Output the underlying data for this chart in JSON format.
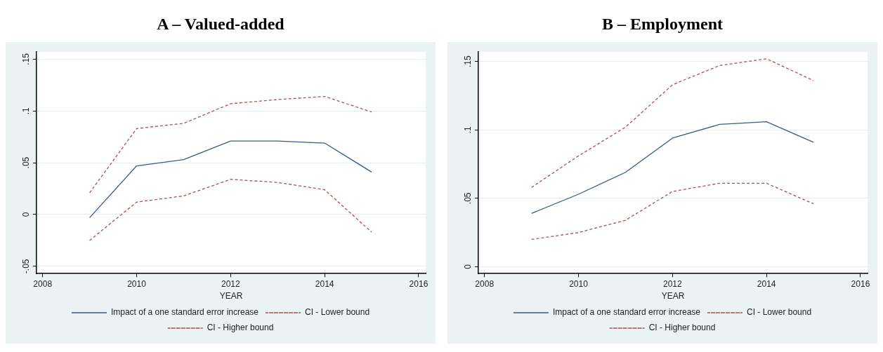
{
  "chart_data": [
    {
      "type": "line",
      "title": "A – Valued-added",
      "xlabel": "YEAR",
      "x": [
        2009,
        2010,
        2011,
        2012,
        2013,
        2014,
        2015
      ],
      "xlim": [
        2007.87,
        2016.15
      ],
      "xticks": [
        2008,
        2010,
        2012,
        2014,
        2016
      ],
      "ylim": [
        -0.057,
        0.157
      ],
      "yticks": [
        {
          "value": -0.05,
          "label": "-.05"
        },
        0,
        {
          "value": 0.05,
          "label": ".05"
        },
        {
          "value": 0.1,
          "label": ".1"
        },
        {
          "value": 0.15,
          "label": ".15"
        }
      ],
      "grid": "y",
      "legend": "bottom",
      "marker": "none",
      "series": [
        {
          "name": "Impact of a one standard error increase",
          "color": "#3b5b7d",
          "line_style": "solid",
          "values": [
            -0.003,
            0.047,
            0.053,
            0.071,
            0.071,
            0.069,
            0.041
          ]
        },
        {
          "name": "CI - Lower bound",
          "color": "#a55353",
          "line_style": "dashed",
          "values": [
            -0.025,
            0.012,
            0.018,
            0.034,
            0.031,
            0.024,
            -0.017
          ]
        },
        {
          "name": "CI - Higher bound",
          "color": "#a55353",
          "line_style": "dashed",
          "values": [
            0.021,
            0.083,
            0.088,
            0.107,
            0.111,
            0.114,
            0.099
          ]
        }
      ]
    },
    {
      "type": "line",
      "title": "B – Employment",
      "xlabel": "YEAR",
      "x": [
        2009,
        2010,
        2011,
        2012,
        2013,
        2014,
        2015
      ],
      "xlim": [
        2007.87,
        2016.15
      ],
      "xticks": [
        2008,
        2010,
        2012,
        2014,
        2016
      ],
      "ylim": [
        -0.005,
        0.157
      ],
      "yticks": [
        0,
        {
          "value": 0.05,
          "label": ".05"
        },
        {
          "value": 0.1,
          "label": ".1"
        },
        {
          "value": 0.15,
          "label": ".15"
        }
      ],
      "grid": "y",
      "legend": "bottom",
      "marker": "none",
      "series": [
        {
          "name": "Impact of a one standard error increase",
          "color": "#3b5b7d",
          "line_style": "solid",
          "values": [
            0.039,
            0.053,
            0.069,
            0.094,
            0.104,
            0.106,
            0.091
          ]
        },
        {
          "name": "CI - Lower bound",
          "color": "#a55353",
          "line_style": "dashed",
          "values": [
            0.02,
            0.025,
            0.034,
            0.055,
            0.061,
            0.061,
            0.046
          ]
        },
        {
          "name": "CI - Higher bound",
          "color": "#a55353",
          "line_style": "dashed",
          "values": [
            0.058,
            0.081,
            0.102,
            0.133,
            0.147,
            0.152,
            0.136
          ]
        }
      ]
    }
  ]
}
